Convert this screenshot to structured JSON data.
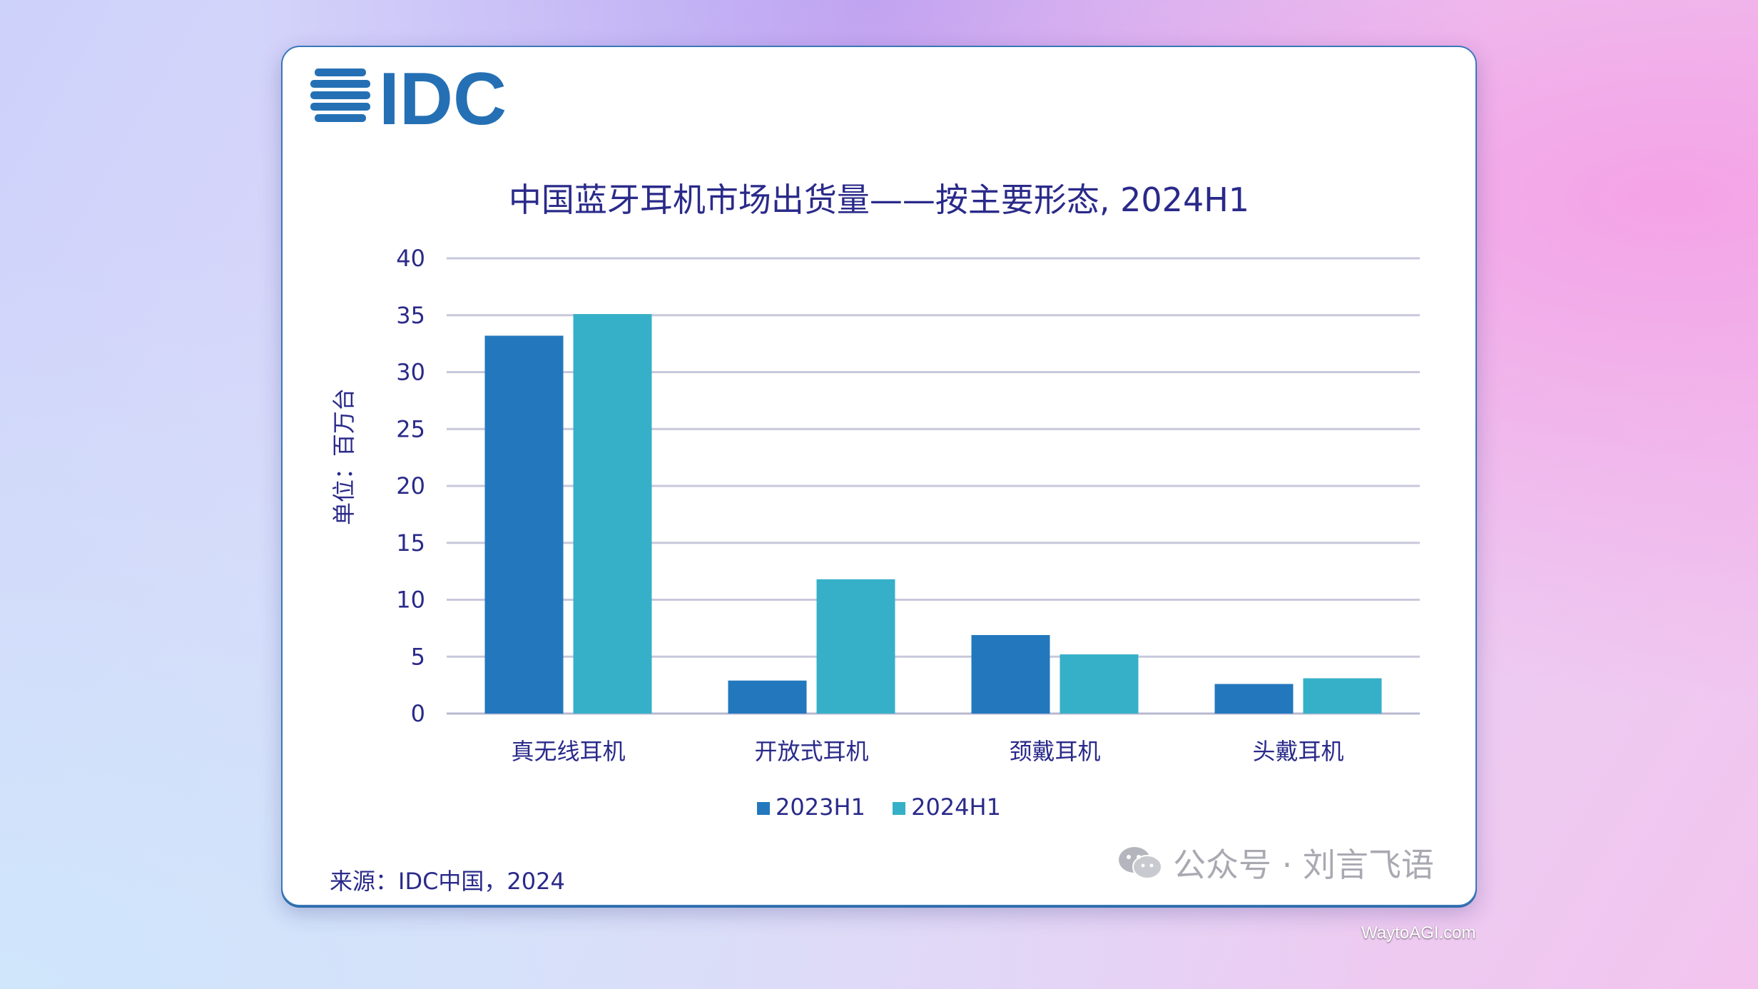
{
  "logo_text": "IDC",
  "watermark": "公众号 · 刘言飞语",
  "source": "来源：IDC中国，2024",
  "site": "WaytoAGI.com",
  "colors": {
    "series_2023": "#2378bd",
    "series_2024": "#35b0c8",
    "text": "#2a2a8a",
    "grid": "#c8c8dc"
  },
  "chart_data": {
    "type": "bar",
    "title": "中国蓝牙耳机市场出货量——按主要形态, 2024H1",
    "ylabel": "单位：百万台",
    "xlabel": "",
    "ylim": [
      0,
      40
    ],
    "yticks": [
      "0",
      "5",
      "10",
      "15",
      "20",
      "25",
      "30",
      "35",
      "40"
    ],
    "grid": true,
    "legend": "bottom",
    "categories": [
      "真无线耳机",
      "开放式耳机",
      "颈戴耳机",
      "头戴耳机"
    ],
    "series": [
      {
        "name": "2023H1",
        "values": [
          33.2,
          2.9,
          6.9,
          2.6
        ]
      },
      {
        "name": "2024H1",
        "values": [
          35.1,
          11.8,
          5.2,
          3.1
        ]
      }
    ]
  }
}
